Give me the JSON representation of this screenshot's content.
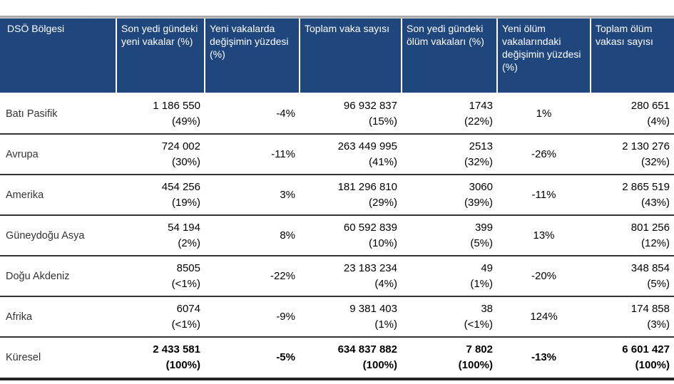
{
  "headers": [
    "DSÖ Bölgesi",
    "Son yedi gündeki yeni vakalar (%)",
    "Yeni vakalarda değişimin yüzdesi (%)",
    "Toplam vaka sayısı",
    "Son yedi gündeki ölüm vakaları (%)",
    "Yeni ölüm vakalarındaki değişimin yüzdesi (%)",
    "Toplam ölüm vakası sayısı"
  ],
  "rows": [
    {
      "region": "Batı Pasifik",
      "new_cases": "1 186 550",
      "new_cases_pct": "(49%)",
      "change": "-4%",
      "total_cases": "96 932 837",
      "total_cases_pct": "(15%)",
      "deaths": "1743",
      "deaths_pct": "(22%)",
      "death_change": "1%",
      "total_deaths": "280 651",
      "total_deaths_pct": "(4%)"
    },
    {
      "region": "Avrupa",
      "new_cases": "724 002",
      "new_cases_pct": "(30%)",
      "change": "-11%",
      "total_cases": "263 449 995",
      "total_cases_pct": "(41%)",
      "deaths": "2513",
      "deaths_pct": "(32%)",
      "death_change": "-26%",
      "total_deaths": "2 130 276",
      "total_deaths_pct": "(32%)"
    },
    {
      "region": "Amerika",
      "new_cases": "454 256",
      "new_cases_pct": "(19%)",
      "change": "3%",
      "total_cases": "181 296 810",
      "total_cases_pct": "(29%)",
      "deaths": "3060",
      "deaths_pct": "(39%)",
      "death_change": "-11%",
      "total_deaths": "2 865 519",
      "total_deaths_pct": "(43%)"
    },
    {
      "region": "Güneydoğu Asya",
      "new_cases": "54 194",
      "new_cases_pct": "(2%)",
      "change": "8%",
      "total_cases": "60 592 839",
      "total_cases_pct": "(10%)",
      "deaths": "399",
      "deaths_pct": "(5%)",
      "death_change": "13%",
      "total_deaths": "801 256",
      "total_deaths_pct": "(12%)"
    },
    {
      "region": "Doğu Akdeniz",
      "new_cases": "8505",
      "new_cases_pct": "(<1%)",
      "change": "-22%",
      "total_cases": "23 183 234",
      "total_cases_pct": "(4%)",
      "deaths": "49",
      "deaths_pct": "(1%)",
      "death_change": "-20%",
      "total_deaths": "348 854",
      "total_deaths_pct": "(5%)"
    },
    {
      "region": "Afrika",
      "new_cases": "6074",
      "new_cases_pct": "(<1%)",
      "change": "-9%",
      "total_cases": "9 381 403",
      "total_cases_pct": "(1%)",
      "deaths": "38",
      "deaths_pct": "(<1%)",
      "death_change": "124%",
      "total_deaths": "174 858",
      "total_deaths_pct": "(3%)"
    },
    {
      "region": "Küresel",
      "new_cases": "2 433 581",
      "new_cases_pct": "(100%)",
      "change": "-5%",
      "total_cases": "634 837 882",
      "total_cases_pct": "(100%)",
      "deaths": "7 802",
      "deaths_pct": "(100%)",
      "death_change": "-13%",
      "total_deaths": "6 601 427",
      "total_deaths_pct": "(100%)"
    }
  ]
}
